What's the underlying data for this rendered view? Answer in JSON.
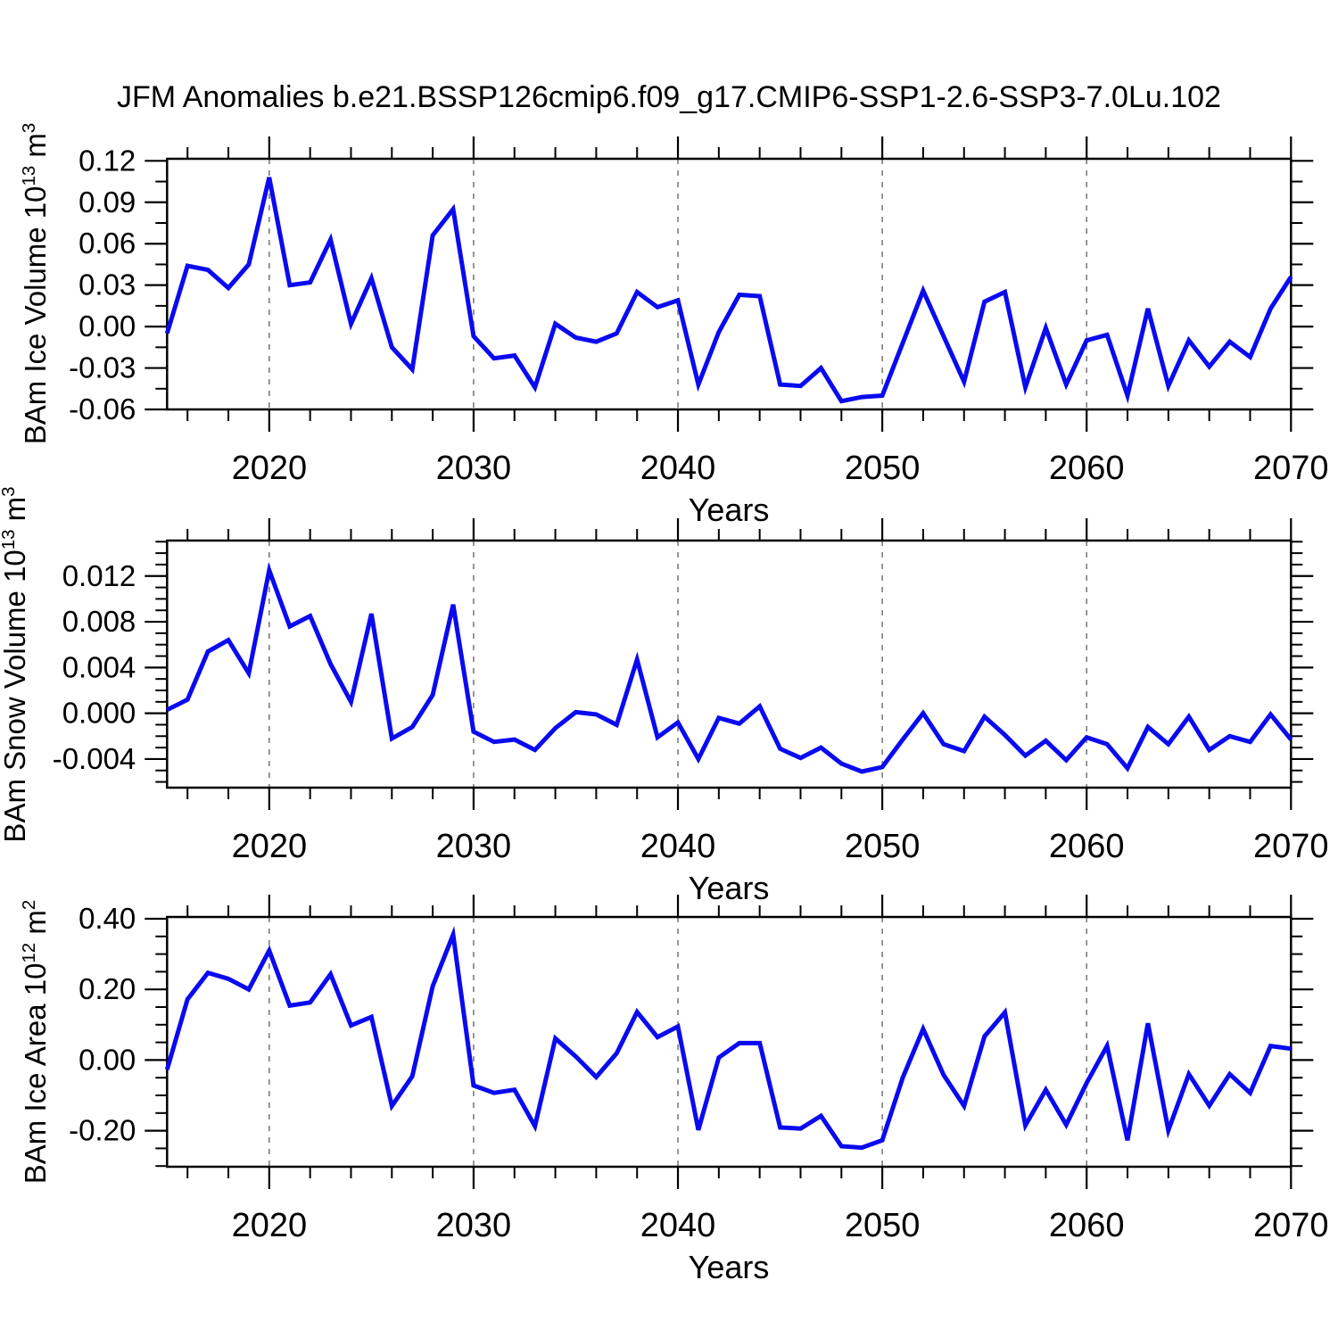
{
  "title": "JFM Anomalies b.e21.BSSP126cmip6.f09_g17.CMIP6-SSP1-2.6-SSP3-7.0Lu.102",
  "chart_data": {
    "type": "line",
    "title": "JFM Anomalies b.e21.BSSP126cmip6.f09_g17.CMIP6-SSP1-2.6-SSP3-7.0Lu.102",
    "line_color": "#0a0af0",
    "grid_color": "#7d7d7d",
    "axis_color": "#000000",
    "xlabel": "Years",
    "x": {
      "start": 2015,
      "end": 2070,
      "major_ticks": [
        2020,
        2030,
        2040,
        2050,
        2060,
        2070
      ],
      "tick_labels": [
        "2020",
        "2030",
        "2040",
        "2050",
        "2060",
        "2070"
      ],
      "minor_step_years": 2,
      "gridline_years": [
        2020,
        2030,
        2040,
        2050,
        2060
      ],
      "grid_style": "dashed"
    },
    "years": [
      2015,
      2016,
      2017,
      2018,
      2019,
      2020,
      2021,
      2022,
      2023,
      2024,
      2025,
      2026,
      2027,
      2028,
      2029,
      2030,
      2031,
      2032,
      2033,
      2034,
      2035,
      2036,
      2037,
      2038,
      2039,
      2040,
      2041,
      2042,
      2043,
      2044,
      2045,
      2046,
      2047,
      2048,
      2049,
      2050,
      2051,
      2052,
      2053,
      2054,
      2055,
      2056,
      2057,
      2058,
      2059,
      2060,
      2061,
      2062,
      2063,
      2064,
      2065,
      2066,
      2067,
      2068,
      2069,
      2070
    ],
    "panels": [
      {
        "id": "ice-volume",
        "ylabel": {
          "base": "BAm Ice Volume 10",
          "sup1": "13",
          "mid": " m",
          "sup2": "3"
        },
        "ylabel_text": "BAm Ice Volume 10^13 m^3",
        "ylim": [
          -0.06,
          0.1215
        ],
        "yticks": [
          {
            "label": "0.12",
            "v": 0.12
          },
          {
            "label": "0.09",
            "v": 0.09
          },
          {
            "label": "0.06",
            "v": 0.06
          },
          {
            "label": "0.03",
            "v": 0.03
          },
          {
            "label": "0.00",
            "v": 0.0
          },
          {
            "label": "-0.03",
            "v": -0.03
          },
          {
            "label": "-0.06",
            "v": -0.06
          }
        ],
        "yminor_step": 0.015,
        "values": [
          -0.005,
          0.044,
          0.041,
          0.028,
          0.045,
          0.108,
          0.03,
          0.032,
          0.063,
          0.002,
          0.035,
          -0.015,
          -0.031,
          0.066,
          0.085,
          -0.007,
          -0.023,
          -0.021,
          -0.044,
          0.002,
          -0.008,
          -0.011,
          -0.005,
          0.025,
          0.014,
          0.019,
          -0.042,
          -0.004,
          0.023,
          0.022,
          -0.042,
          -0.043,
          -0.03,
          -0.054,
          -0.051,
          -0.05,
          -0.012,
          0.026,
          -0.007,
          -0.04,
          0.018,
          0.025,
          -0.044,
          -0.001,
          -0.042,
          -0.01,
          -0.006,
          -0.05,
          0.013,
          -0.043,
          -0.01,
          -0.029,
          -0.011,
          -0.022,
          0.013,
          0.036
        ]
      },
      {
        "id": "snow-volume",
        "ylabel": {
          "base": "BAm Snow Volume 10",
          "sup1": "13",
          "mid": " m",
          "sup2": "3"
        },
        "ylabel_text": "BAm Snow Volume 10^13 m^3",
        "ylim": [
          -0.0065,
          0.0151
        ],
        "yticks": [
          {
            "label": "0.012",
            "v": 0.012
          },
          {
            "label": "0.008",
            "v": 0.008
          },
          {
            "label": "0.004",
            "v": 0.004
          },
          {
            "label": "0.000",
            "v": 0.0
          },
          {
            "label": "-0.004",
            "v": -0.004
          }
        ],
        "yminor_step": 0.001,
        "values": [
          0.0003,
          0.0012,
          0.0054,
          0.0064,
          0.0035,
          0.0125,
          0.0076,
          0.0085,
          0.0043,
          0.001,
          0.0087,
          -0.0022,
          -0.0012,
          0.0016,
          0.0095,
          -0.0016,
          -0.0025,
          -0.0023,
          -0.0032,
          -0.0013,
          0.0001,
          -0.0001,
          -0.001,
          0.0047,
          -0.0021,
          -0.0008,
          -0.004,
          -0.0004,
          -0.0009,
          0.0006,
          -0.0031,
          -0.0039,
          -0.003,
          -0.0044,
          -0.0051,
          -0.0047,
          -0.0023,
          0.0,
          -0.0027,
          -0.0033,
          -0.0003,
          -0.0019,
          -0.0037,
          -0.0024,
          -0.0041,
          -0.0021,
          -0.0027,
          -0.0048,
          -0.0012,
          -0.0027,
          -0.0003,
          -0.0032,
          -0.002,
          -0.0025,
          -0.0001,
          -0.0023
        ]
      },
      {
        "id": "ice-area",
        "ylabel": {
          "base": "BAm Ice Area 10",
          "sup1": "12",
          "mid": " m",
          "sup2": "2"
        },
        "ylabel_text": "BAm Ice Area 10^12 m^2",
        "ylim": [
          -0.302,
          0.405
        ],
        "yticks": [
          {
            "label": "0.40",
            "v": 0.4
          },
          {
            "label": "0.20",
            "v": 0.2
          },
          {
            "label": "0.00",
            "v": 0.0
          },
          {
            "label": "-0.20",
            "v": -0.2
          }
        ],
        "yminor_step": 0.05,
        "values": [
          -0.027,
          0.172,
          0.247,
          0.23,
          0.2,
          0.31,
          0.154,
          0.163,
          0.243,
          0.098,
          0.122,
          -0.13,
          -0.046,
          0.209,
          0.355,
          -0.072,
          -0.093,
          -0.084,
          -0.187,
          0.061,
          0.01,
          -0.048,
          0.019,
          0.136,
          0.065,
          0.095,
          -0.198,
          0.007,
          0.048,
          0.048,
          -0.191,
          -0.194,
          -0.158,
          -0.244,
          -0.248,
          -0.227,
          -0.05,
          0.088,
          -0.042,
          -0.13,
          0.067,
          0.135,
          -0.185,
          -0.084,
          -0.183,
          -0.065,
          0.04,
          -0.227,
          0.104,
          -0.199,
          -0.04,
          -0.129,
          -0.04,
          -0.093,
          0.04,
          0.032
        ]
      }
    ]
  }
}
